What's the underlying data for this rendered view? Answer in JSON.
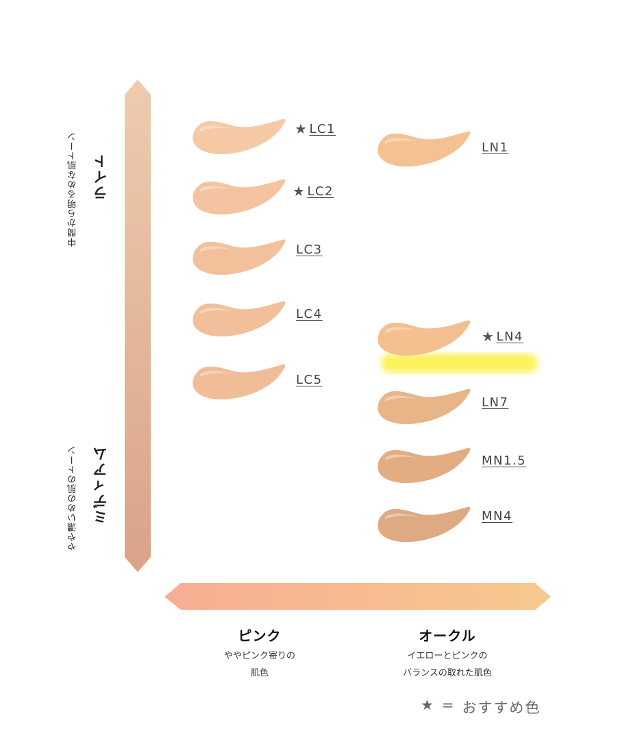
{
  "vertical_axis": {
    "top_label_small": "中間から明るめな肌トーン",
    "top_label_big": "ライト",
    "bottom_label_small": "やや濃いめの肌のトーン",
    "bottom_label_big": "ミディアム"
  },
  "columns": [
    {
      "title": "ピンク",
      "description_line1": "ややピンク寄りの",
      "description_line2": "肌色"
    },
    {
      "title": "オークル",
      "description_line1": "イエローとピンクの",
      "description_line2": "バランスの取れた肌色"
    }
  ],
  "shades": [
    {
      "name": "LC1",
      "recommended": true,
      "star": "★",
      "color": "#f6c9a5"
    },
    {
      "name": "LC2",
      "recommended": true,
      "star": "★",
      "color": "#f4c4a1"
    },
    {
      "name": "LC3",
      "recommended": false,
      "star": "",
      "color": "#f2c09b"
    },
    {
      "name": "LC4",
      "recommended": false,
      "star": "",
      "color": "#f1bf9a"
    },
    {
      "name": "LC5",
      "recommended": false,
      "star": "",
      "color": "#f1bd99"
    },
    {
      "name": "LN1",
      "recommended": false,
      "star": "",
      "color": "#f4c192"
    },
    {
      "name": "LN4",
      "recommended": true,
      "star": "★",
      "color": "#f3bf8f"
    },
    {
      "name": "LN7",
      "recommended": false,
      "star": "",
      "color": "#e8b589"
    },
    {
      "name": "MN1.5",
      "recommended": false,
      "star": "",
      "color": "#e2ad82"
    },
    {
      "name": "MN4",
      "recommended": false,
      "star": "",
      "color": "#ddaa84"
    }
  ],
  "legend": {
    "star": "★",
    "equals": "=",
    "text": "おすすめ色"
  },
  "colors": {
    "vertical_arrow_top": "#eecbb0",
    "vertical_arrow_bottom": "#d9a388",
    "horizontal_arrow_left": "#f8ad93",
    "horizontal_arrow_right": "#f6c98e",
    "highlight": "#fbf25a"
  }
}
